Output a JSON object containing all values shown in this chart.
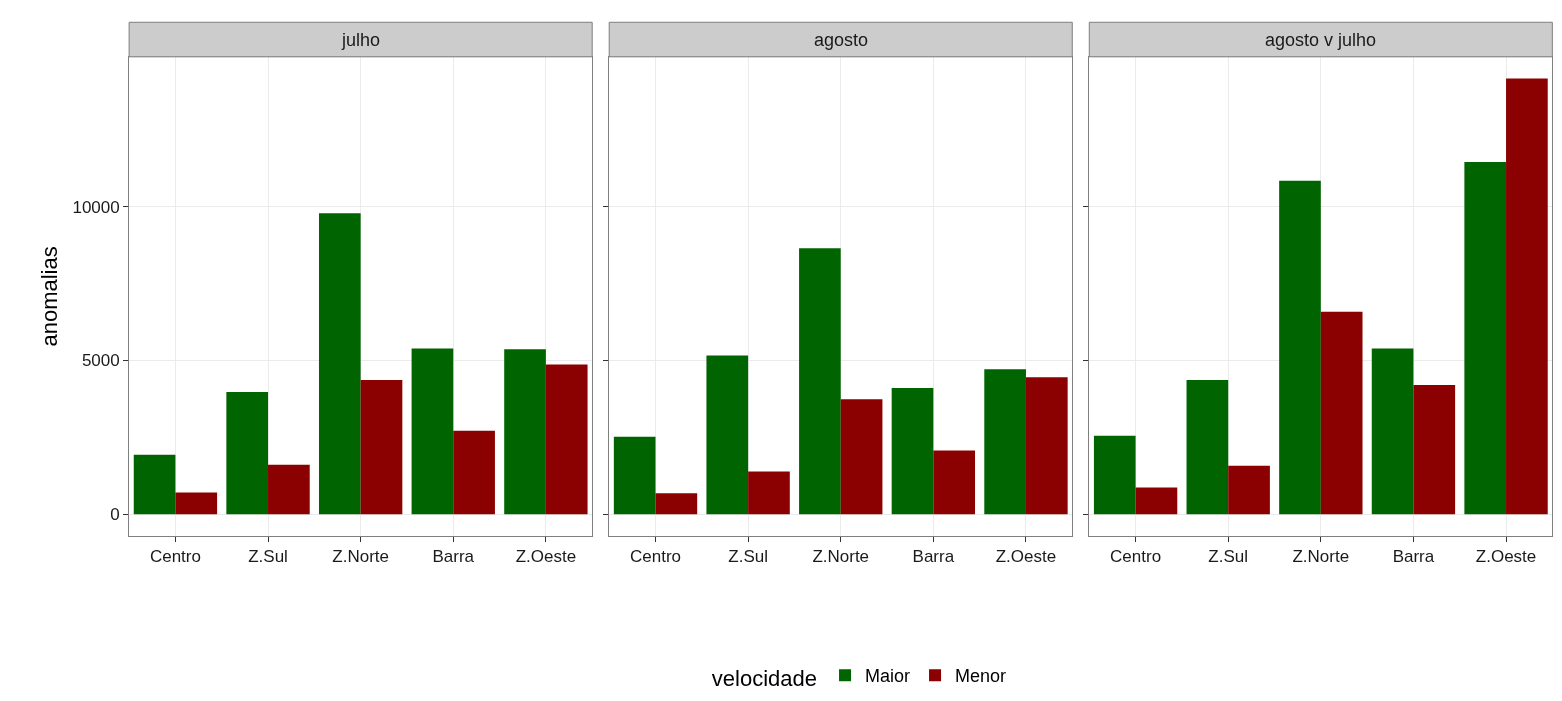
{
  "chart_data": [
    {
      "type": "bar",
      "title": "julho",
      "ylabel": "anomalias",
      "categories": [
        "Centro",
        "Z.Sul",
        "Z.Norte",
        "Barra",
        "Z.Oeste"
      ],
      "series": [
        {
          "name": "Maior",
          "color": "#006400",
          "values": [
            1930,
            3970,
            9780,
            5390,
            5360
          ]
        },
        {
          "name": "Menor",
          "color": "#8b0000",
          "values": [
            710,
            1610,
            4360,
            2710,
            4870
          ]
        }
      ],
      "ylim": [
        -708,
        14868
      ],
      "yticks": [
        0,
        5000,
        10000
      ],
      "grid": true,
      "legend": "bottom",
      "legend_title": "velocidade"
    },
    {
      "type": "bar",
      "title": "agosto",
      "categories": [
        "Centro",
        "Z.Sul",
        "Z.Norte",
        "Barra",
        "Z.Oeste"
      ],
      "series": [
        {
          "color": "#006400",
          "values": [
            2520,
            5160,
            8650,
            4100,
            4710
          ]
        },
        {
          "color": "#8b0000",
          "values": [
            680,
            1390,
            3740,
            2070,
            4450
          ]
        }
      ],
      "ylim": [
        -708,
        14868
      ],
      "yticks": [
        {
          "value": 0,
          "label": null
        },
        {
          "value": 5000,
          "label": null
        },
        {
          "value": 10000,
          "label": null
        }
      ],
      "grid": true,
      "tick_labels": "x"
    },
    {
      "type": "bar",
      "title": "agosto v julho",
      "categories": [
        "Centro",
        "Z.Sul",
        "Z.Norte",
        "Barra",
        "Z.Oeste"
      ],
      "series": [
        {
          "color": "#006400",
          "values": [
            2550,
            4360,
            10840,
            5390,
            11450
          ]
        },
        {
          "color": "#8b0000",
          "values": [
            870,
            1580,
            6580,
            4200,
            14160
          ]
        }
      ],
      "ylim": [
        -708,
        14868
      ],
      "yticks": [
        {
          "value": 0,
          "label": null
        },
        {
          "value": 5000,
          "label": null
        },
        {
          "value": 10000,
          "label": null
        }
      ],
      "grid": true,
      "tick_labels": "x"
    }
  ]
}
